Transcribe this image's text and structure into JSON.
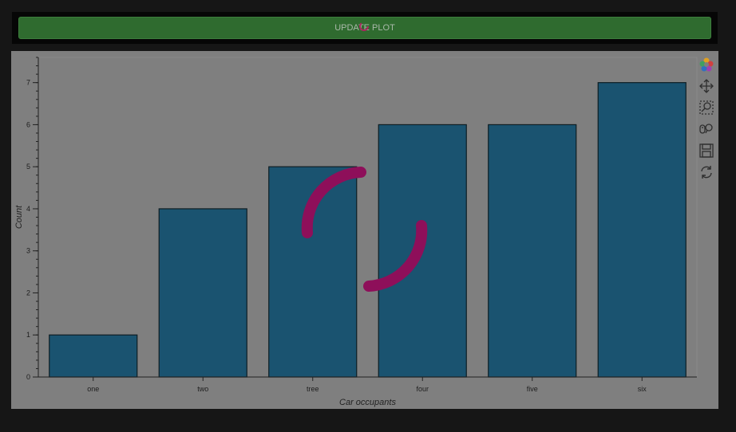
{
  "button": {
    "label": "UPDATE PLOT"
  },
  "toolbar": {
    "tools": [
      "bokeh-logo-icon",
      "pan-icon",
      "box-zoom-icon",
      "wheel-zoom-icon",
      "save-icon",
      "reset-icon"
    ]
  },
  "colors": {
    "bar_fill": "#1a5370",
    "bar_stroke": "#0e1e24",
    "panel": "#7f7f7f",
    "button": "#2f6b2f",
    "spinner": "#8e0f5a"
  },
  "chart_data": {
    "type": "bar",
    "categories": [
      "one",
      "two",
      "tree",
      "four",
      "five",
      "six"
    ],
    "values": [
      1,
      4,
      5,
      6,
      6,
      7
    ],
    "xlabel": "Car occupants",
    "ylabel": "Count",
    "ylim": [
      0,
      7.6
    ],
    "yticks": [
      0,
      1,
      2,
      3,
      4,
      5,
      6,
      7
    ],
    "grid": false
  }
}
